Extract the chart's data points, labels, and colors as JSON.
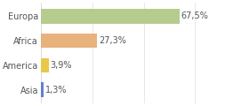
{
  "categories": [
    "Europa",
    "Africa",
    "America",
    "Asia"
  ],
  "values": [
    67.5,
    27.3,
    3.9,
    1.3
  ],
  "labels": [
    "67,5%",
    "27,3%",
    "3,9%",
    "1,3%"
  ],
  "colors": [
    "#b5cc8e",
    "#e8b27d",
    "#e8c84a",
    "#6080d0"
  ],
  "background_color": "#ffffff",
  "plot_bg_color": "#ffffff",
  "xlim": [
    0,
    100
  ],
  "bar_height": 0.6,
  "label_fontsize": 7.0,
  "category_fontsize": 7.0,
  "label_color": "#555555",
  "grid_color": "#dddddd"
}
